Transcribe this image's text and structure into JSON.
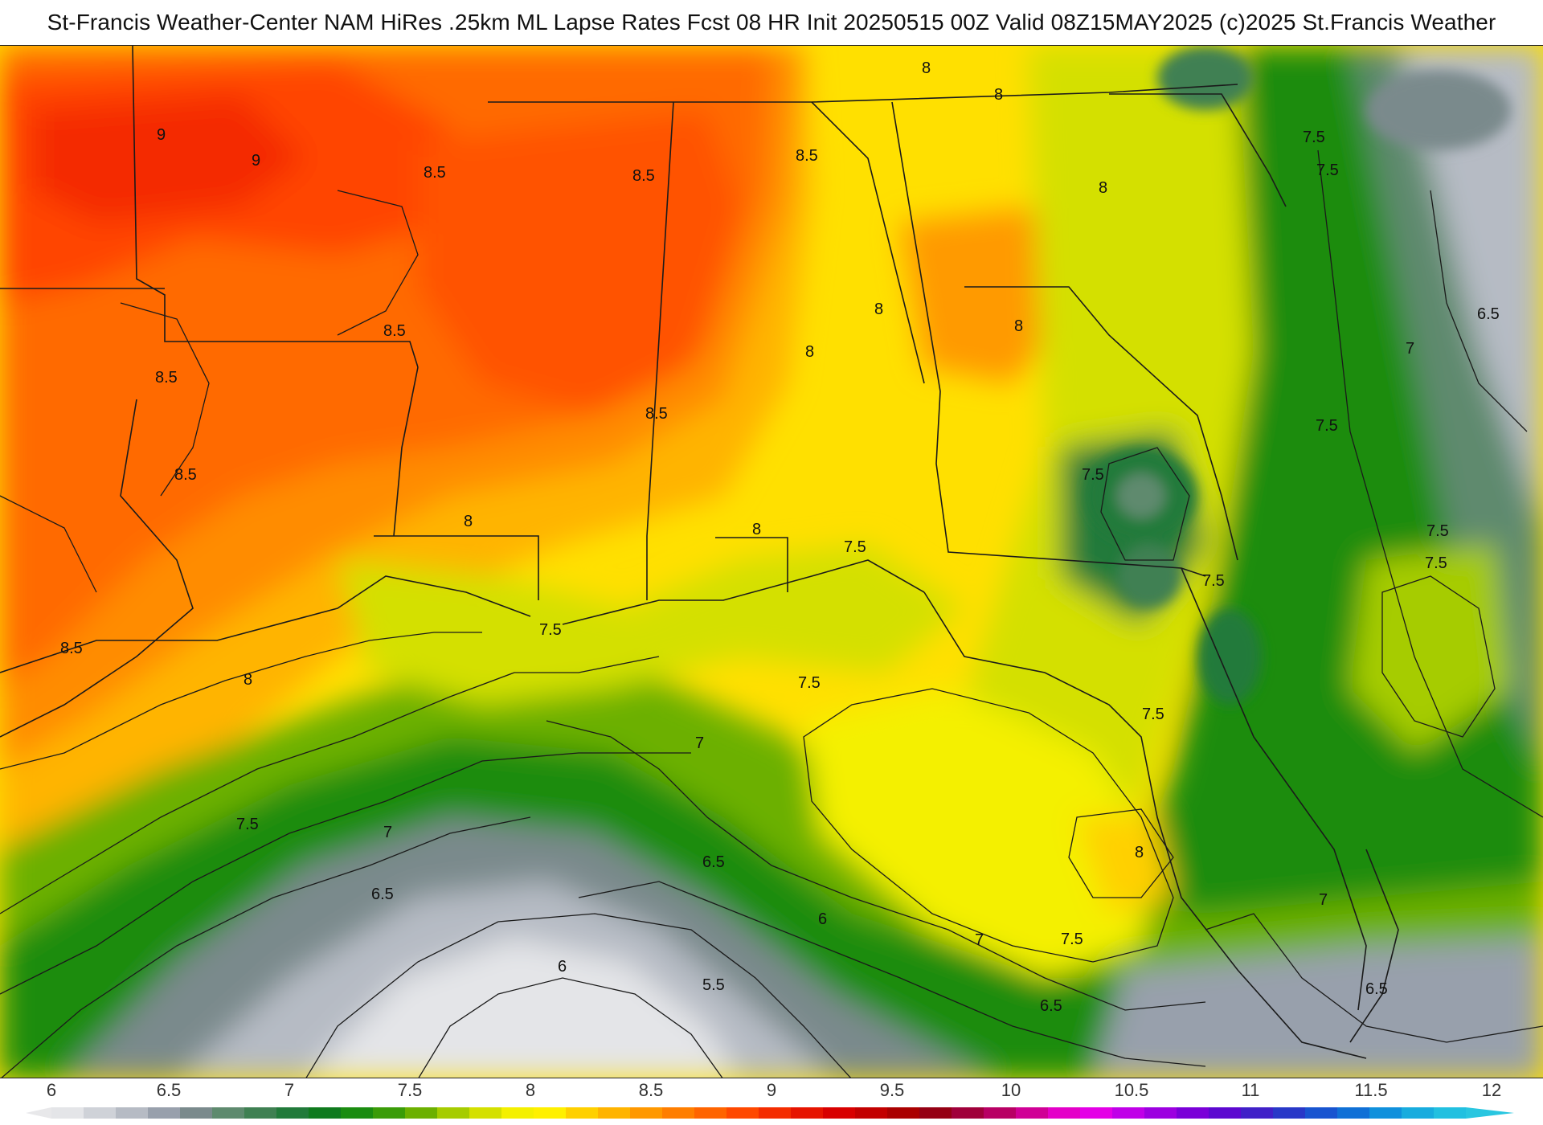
{
  "title": "St-Francis Weather-Center NAM HiRes .25km ML Lapse Rates  Fcst 08 HR Init 20250515 00Z  Valid 08Z15MAY2025    (c)2025 St.Francis Weather",
  "legend": {
    "ticks": [
      "6",
      "6.5",
      "7",
      "7.5",
      "8",
      "8.5",
      "9",
      "9.5",
      "10",
      "10.5",
      "11",
      "11.5",
      "12"
    ],
    "colors": [
      "#e4e5e8",
      "#cfd2d8",
      "#b6bbc4",
      "#98a0ac",
      "#7a8a8c",
      "#5e8a6e",
      "#3f8052",
      "#217a3a",
      "#0f7a1e",
      "#1a8c10",
      "#3a9c08",
      "#6cb000",
      "#a6cc00",
      "#d4e000",
      "#f4f000",
      "#fff000",
      "#ffd000",
      "#ffb400",
      "#ff9800",
      "#ff7e00",
      "#ff6400",
      "#ff4800",
      "#f42c00",
      "#e61400",
      "#d80000",
      "#c20000",
      "#aa0000",
      "#950014",
      "#a0003a",
      "#b80064",
      "#d00096",
      "#e400c8",
      "#e400e6",
      "#c000e8",
      "#9c00e0",
      "#7a00d8",
      "#5c08d0",
      "#4020c8",
      "#2838c8",
      "#1854d0",
      "#1070d6",
      "#1090dc",
      "#18acde",
      "#22c0e0"
    ]
  },
  "contour_labels": [
    {
      "text": "9"
    },
    {
      "text": "9"
    },
    {
      "text": "8.5"
    },
    {
      "text": "8.5"
    },
    {
      "text": "8.5"
    },
    {
      "text": "8"
    },
    {
      "text": "8"
    },
    {
      "text": "8.5"
    },
    {
      "text": "8.5"
    },
    {
      "text": "8"
    },
    {
      "text": "8.5"
    },
    {
      "text": "8.5"
    },
    {
      "text": "8"
    },
    {
      "text": "8"
    },
    {
      "text": "8"
    },
    {
      "text": "7.5"
    },
    {
      "text": "7.5"
    },
    {
      "text": "6.5"
    },
    {
      "text": "7"
    },
    {
      "text": "7.5"
    },
    {
      "text": "7.5"
    },
    {
      "text": "8.5"
    },
    {
      "text": "8"
    },
    {
      "text": "8"
    },
    {
      "text": "7.5"
    },
    {
      "text": "7.5"
    },
    {
      "text": "7.5"
    },
    {
      "text": "7.5"
    },
    {
      "text": "7.5"
    },
    {
      "text": "7.5"
    },
    {
      "text": "8"
    },
    {
      "text": "7"
    },
    {
      "text": "7.5"
    },
    {
      "text": "8"
    },
    {
      "text": "7"
    },
    {
      "text": "6.5"
    },
    {
      "text": "6.5"
    },
    {
      "text": "6"
    },
    {
      "text": "6"
    },
    {
      "text": "5.5"
    },
    {
      "text": "7"
    },
    {
      "text": "7.5"
    },
    {
      "text": "6.5"
    },
    {
      "text": "7"
    },
    {
      "text": "6.5"
    },
    {
      "text": "7.5"
    }
  ],
  "colors": {
    "hot": "#ff5a00",
    "warm": "#ff9a00",
    "yellow": "#f4f000",
    "green": "#1a8c10",
    "gray": "#98a0ac"
  }
}
